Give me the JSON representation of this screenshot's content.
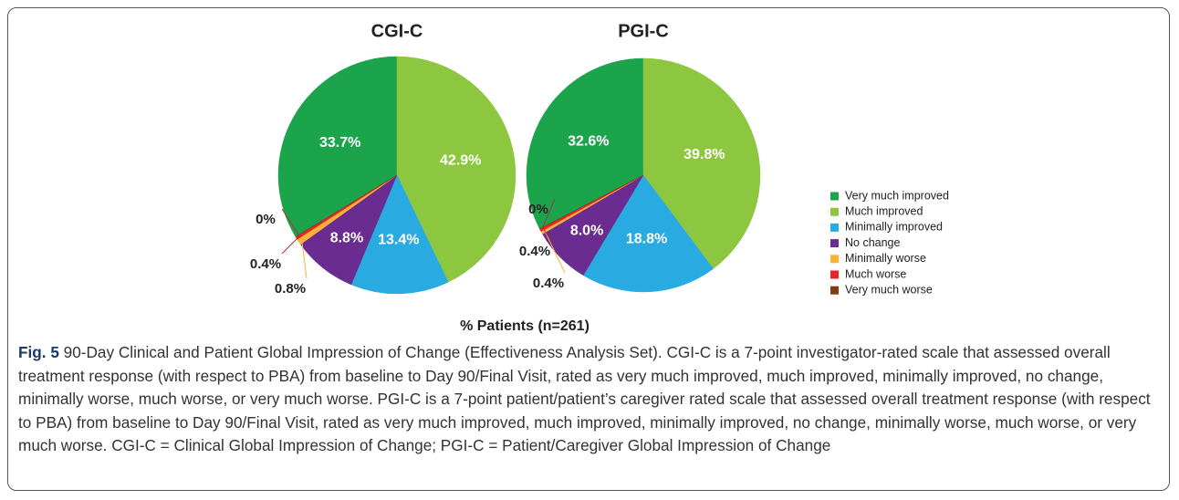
{
  "chart_data": [
    {
      "type": "pie",
      "title": "CGI-C",
      "categories": [
        "Very much improved",
        "Much improved",
        "Minimally improved",
        "No change",
        "Minimally worse",
        "Much worse",
        "Very much worse"
      ],
      "values": [
        33.7,
        42.9,
        13.4,
        8.8,
        0.8,
        0.4,
        0
      ],
      "value_labels": [
        "33.7%",
        "42.9%",
        "13.4%",
        "8.8%",
        "0.8%",
        "0.4%",
        "0%"
      ],
      "colors": [
        "#1ba44b",
        "#8dc63f",
        "#29abe2",
        "#6a2c91",
        "#fbb23b",
        "#e8232a",
        "#7b3f12"
      ]
    },
    {
      "type": "pie",
      "title": "PGI-C",
      "categories": [
        "Very much improved",
        "Much improved",
        "Minimally improved",
        "No change",
        "Minimally worse",
        "Much worse",
        "Very much worse"
      ],
      "values": [
        32.6,
        39.8,
        18.8,
        8.0,
        0.4,
        0.4,
        0
      ],
      "value_labels": [
        "32.6%",
        "39.8%",
        "18.8%",
        "8.0%",
        "0.4%",
        "0.4%",
        "0%"
      ],
      "colors": [
        "#1ba44b",
        "#8dc63f",
        "#29abe2",
        "#6a2c91",
        "#fbb23b",
        "#e8232a",
        "#7b3f12"
      ]
    }
  ],
  "x_label": "% Patients (n=261)",
  "caption": {
    "label": "Fig. 5",
    "text": "90-Day Clinical and Patient Global Impression of Change (Effectiveness Analysis Set). CGI-C is a 7-point investigator-rated scale that assessed overall treatment response (with respect to PBA) from baseline to Day 90/Final Visit, rated as very much improved, much improved, minimally improved, no change, minimally worse, much worse, or very much worse. PGI-C is a 7-point patient/patient’s caregiver rated scale that assessed overall treatment response (with respect to PBA) from baseline to Day 90/Final Visit, rated as very much improved, much improved, minimally improved, no change, minimally worse, much worse, or very much worse. CGI-C = Clinical Global Impression of Change; PGI-C = Patient/Caregiver Global Impression of Change"
  }
}
